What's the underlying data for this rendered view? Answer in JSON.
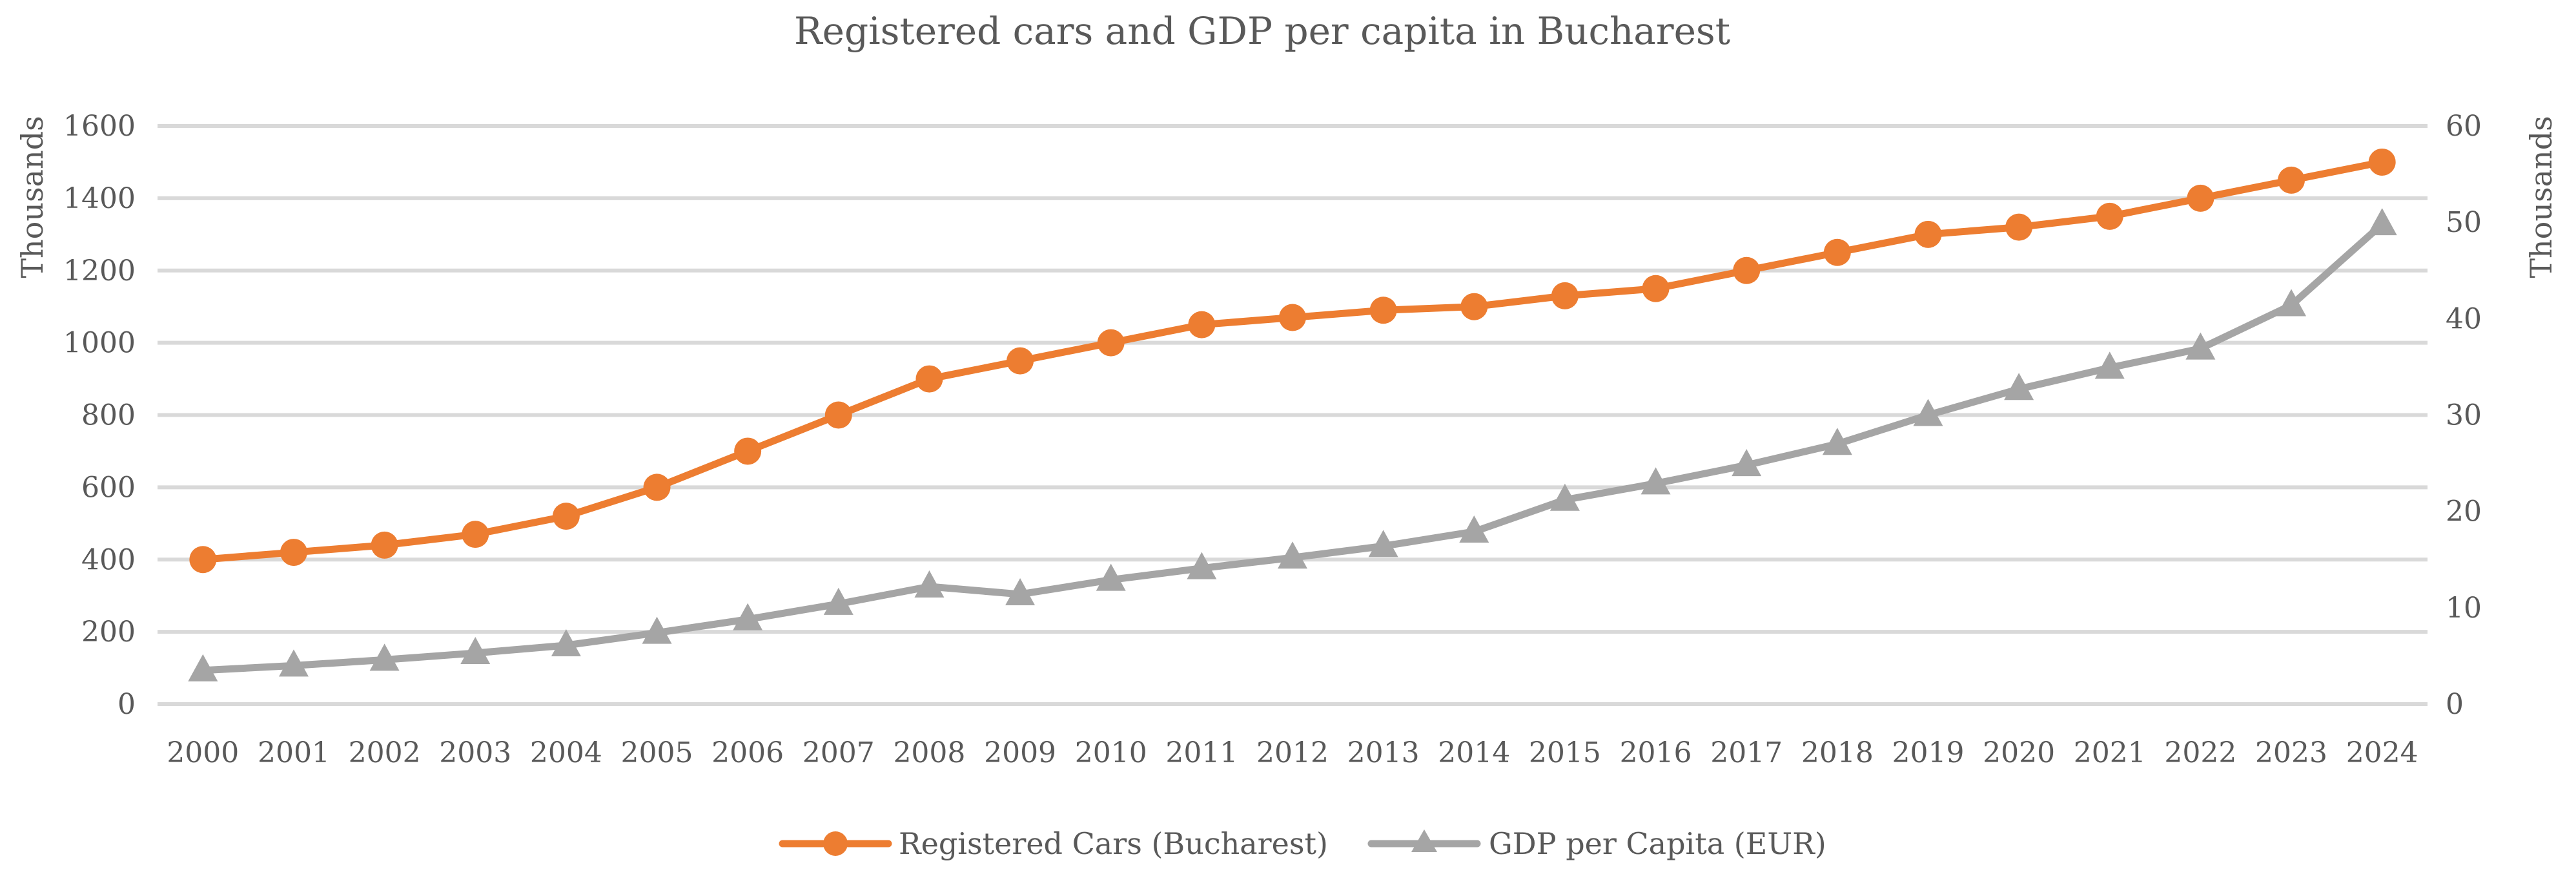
{
  "chart_data": {
    "type": "line",
    "title": "Registered cars and GDP per capita in Bucharest",
    "categories": [
      "2000",
      "2001",
      "2002",
      "2003",
      "2004",
      "2005",
      "2006",
      "2007",
      "2008",
      "2009",
      "2010",
      "2011",
      "2012",
      "2013",
      "2014",
      "2015",
      "2016",
      "2017",
      "2018",
      "2019",
      "2020",
      "2021",
      "2022",
      "2023",
      "2024"
    ],
    "y_left": {
      "label": "Thousands",
      "ylim": [
        0,
        1600
      ],
      "ticks": [
        "0",
        "200",
        "400",
        "600",
        "800",
        "1000",
        "1200",
        "1400",
        "1600"
      ]
    },
    "y_right": {
      "label": "Thousands",
      "ylim": [
        0,
        60
      ],
      "ticks": [
        "0",
        "10",
        "20",
        "30",
        "40",
        "50",
        "60"
      ]
    },
    "grid": true,
    "legend_position": "bottom",
    "series": [
      {
        "name": "Registered Cars (Bucharest)",
        "axis": "left",
        "marker": "circle",
        "color": "#ED7D31",
        "values": [
          400,
          420,
          440,
          470,
          520,
          600,
          700,
          800,
          900,
          950,
          1000,
          1050,
          1070,
          1090,
          1100,
          1130,
          1150,
          1200,
          1250,
          1300,
          1320,
          1350,
          1400,
          1450,
          1500
        ]
      },
      {
        "name": "GDP per Capita (EUR)",
        "axis": "right",
        "marker": "triangle",
        "color": "#A5A5A5",
        "values": [
          3.5,
          4.0,
          4.6,
          5.3,
          6.1,
          7.4,
          8.8,
          10.4,
          12.2,
          11.4,
          12.9,
          14.1,
          15.2,
          16.4,
          17.9,
          21.2,
          22.9,
          24.8,
          27.0,
          30.0,
          32.7,
          34.9,
          36.9,
          41.4,
          49.8
        ]
      }
    ]
  }
}
